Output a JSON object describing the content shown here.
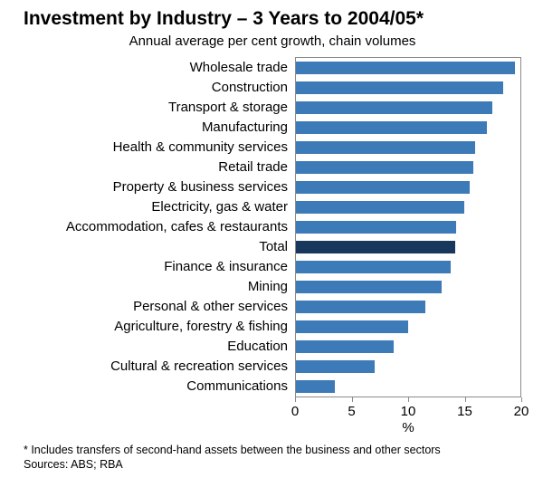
{
  "header": {
    "title": "Investment by Industry – 3 Years to 2004/05*",
    "subtitle": "Annual average per cent growth, chain volumes"
  },
  "chart_data": {
    "type": "bar",
    "orientation": "horizontal",
    "title": "Investment by Industry – 3 Years to 2004/05*",
    "subtitle": "Annual average per cent growth, chain volumes",
    "categories": [
      "Wholesale trade",
      "Construction",
      "Transport & storage",
      "Manufacturing",
      "Health & community services",
      "Retail trade",
      "Property & business services",
      "Electricity, gas & water",
      "Accommodation, cafes & restaurants",
      "Total",
      "Finance & insurance",
      "Mining",
      "Personal & other services",
      "Agriculture, forestry & fishing",
      "Education",
      "Cultural & recreation services",
      "Communications"
    ],
    "values": [
      19.5,
      18.5,
      17.5,
      17,
      16,
      15.8,
      15.5,
      15,
      14.3,
      14.2,
      13.8,
      13,
      11.5,
      10,
      8.7,
      7,
      3.5
    ],
    "highlight_category": "Total",
    "bar_color": "#3d7ab8",
    "highlight_color": "#17375d",
    "xlim": [
      0,
      20
    ],
    "xticks": [
      0,
      5,
      10,
      15,
      20
    ],
    "xlabel": "%",
    "grid": false,
    "legend": "none"
  },
  "footnotes": {
    "asterisk_note": "*  Includes transfers of second-hand assets between the business and other sectors",
    "sources": "Sources: ABS; RBA"
  }
}
